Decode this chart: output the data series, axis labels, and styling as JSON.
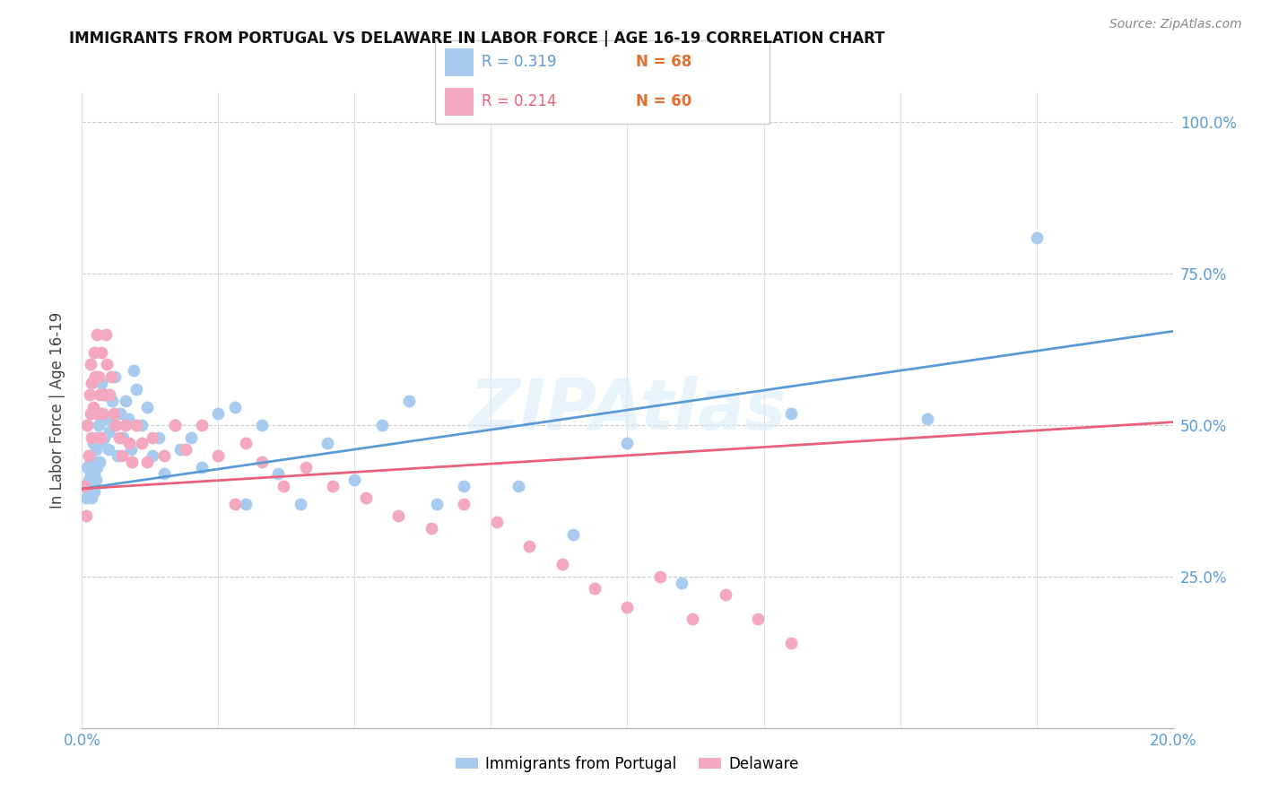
{
  "title": "IMMIGRANTS FROM PORTUGAL VS DELAWARE IN LABOR FORCE | AGE 16-19 CORRELATION CHART",
  "source": "Source: ZipAtlas.com",
  "ylabel": "In Labor Force | Age 16-19",
  "xlim": [
    0.0,
    0.2
  ],
  "ylim": [
    0.0,
    1.05
  ],
  "blue_color": "#A8CCF0",
  "pink_color": "#F4A8C0",
  "blue_line_color": "#5B9BD5",
  "pink_line_color": "#E8607A",
  "legend_blue_R": "R = 0.319",
  "legend_blue_N": "N = 68",
  "legend_pink_R": "R = 0.214",
  "legend_pink_N": "N = 60",
  "axis_tick_color": "#5B9BD5",
  "n_color": "#E07030",
  "watermark": "ZIPAtlas",
  "blue_scatter_x": [
    0.0005,
    0.0008,
    0.001,
    0.0012,
    0.0013,
    0.0014,
    0.0015,
    0.0016,
    0.0017,
    0.0018,
    0.0019,
    0.002,
    0.0021,
    0.0022,
    0.0023,
    0.0024,
    0.0025,
    0.0026,
    0.0027,
    0.0028,
    0.003,
    0.0032,
    0.0034,
    0.0035,
    0.0037,
    0.004,
    0.0042,
    0.0045,
    0.0048,
    0.005,
    0.0055,
    0.006,
    0.0065,
    0.007,
    0.0075,
    0.008,
    0.0085,
    0.009,
    0.0095,
    0.01,
    0.011,
    0.012,
    0.013,
    0.014,
    0.015,
    0.017,
    0.018,
    0.02,
    0.022,
    0.025,
    0.028,
    0.03,
    0.033,
    0.036,
    0.04,
    0.045,
    0.05,
    0.055,
    0.06,
    0.065,
    0.07,
    0.08,
    0.09,
    0.1,
    0.11,
    0.13,
    0.155,
    0.175
  ],
  "blue_scatter_y": [
    0.4,
    0.38,
    0.43,
    0.41,
    0.45,
    0.39,
    0.42,
    0.44,
    0.38,
    0.41,
    0.43,
    0.4,
    0.47,
    0.42,
    0.39,
    0.44,
    0.46,
    0.41,
    0.48,
    0.43,
    0.5,
    0.44,
    0.47,
    0.57,
    0.52,
    0.48,
    0.55,
    0.51,
    0.46,
    0.49,
    0.54,
    0.58,
    0.45,
    0.52,
    0.48,
    0.54,
    0.51,
    0.46,
    0.59,
    0.56,
    0.5,
    0.53,
    0.45,
    0.48,
    0.42,
    0.5,
    0.46,
    0.48,
    0.43,
    0.52,
    0.53,
    0.37,
    0.5,
    0.42,
    0.37,
    0.47,
    0.41,
    0.5,
    0.54,
    0.37,
    0.4,
    0.4,
    0.32,
    0.47,
    0.24,
    0.52,
    0.51,
    0.81
  ],
  "pink_scatter_x": [
    0.0005,
    0.0008,
    0.001,
    0.0012,
    0.0014,
    0.0015,
    0.0016,
    0.0017,
    0.0018,
    0.002,
    0.0022,
    0.0024,
    0.0026,
    0.0028,
    0.003,
    0.0032,
    0.0034,
    0.0036,
    0.0038,
    0.004,
    0.0043,
    0.0046,
    0.005,
    0.0054,
    0.0058,
    0.0062,
    0.0068,
    0.0074,
    0.008,
    0.0086,
    0.0092,
    0.01,
    0.011,
    0.012,
    0.013,
    0.015,
    0.017,
    0.019,
    0.022,
    0.025,
    0.028,
    0.03,
    0.033,
    0.037,
    0.041,
    0.046,
    0.052,
    0.058,
    0.064,
    0.07,
    0.076,
    0.082,
    0.088,
    0.094,
    0.1,
    0.106,
    0.112,
    0.118,
    0.124,
    0.13
  ],
  "pink_scatter_y": [
    0.4,
    0.35,
    0.5,
    0.45,
    0.55,
    0.6,
    0.52,
    0.48,
    0.57,
    0.53,
    0.62,
    0.58,
    0.52,
    0.65,
    0.58,
    0.55,
    0.48,
    0.62,
    0.52,
    0.55,
    0.65,
    0.6,
    0.55,
    0.58,
    0.52,
    0.5,
    0.48,
    0.45,
    0.5,
    0.47,
    0.44,
    0.5,
    0.47,
    0.44,
    0.48,
    0.45,
    0.5,
    0.46,
    0.5,
    0.45,
    0.37,
    0.47,
    0.44,
    0.4,
    0.43,
    0.4,
    0.38,
    0.35,
    0.33,
    0.37,
    0.34,
    0.3,
    0.27,
    0.23,
    0.2,
    0.25,
    0.18,
    0.22,
    0.18,
    0.14
  ]
}
